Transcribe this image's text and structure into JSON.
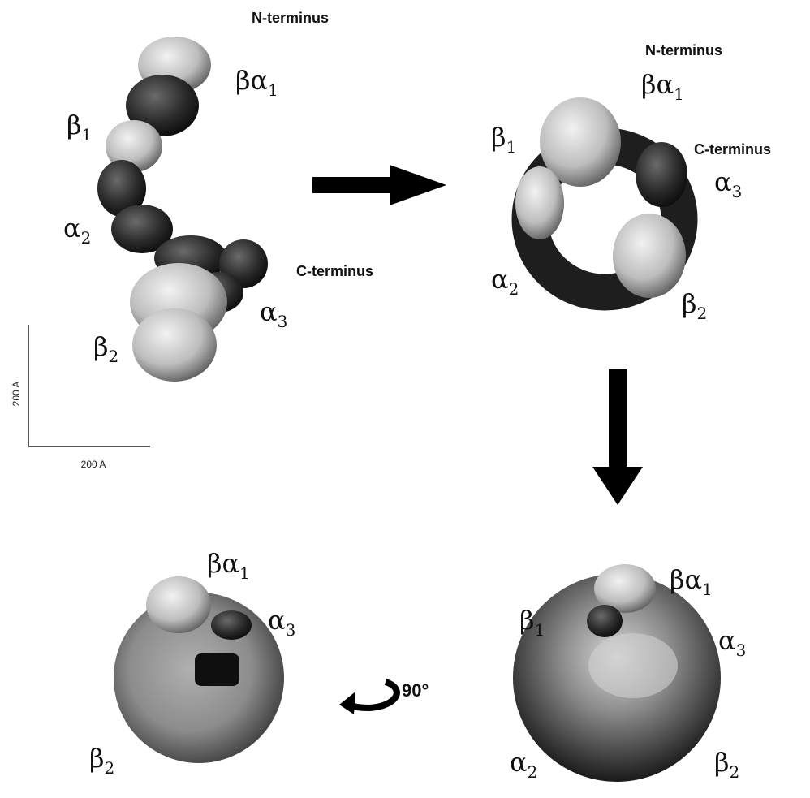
{
  "panels": [
    {
      "labels": [
        {
          "text": "N-terminus"
        },
        {
          "symbol": "βα",
          "subscript": "1"
        },
        {
          "symbol": "β",
          "subscript": "1"
        },
        {
          "symbol": "α",
          "subscript": "2"
        },
        {
          "text": "C-terminus"
        },
        {
          "symbol": "α",
          "subscript": "3"
        },
        {
          "symbol": "β",
          "subscript": "2"
        }
      ]
    },
    {
      "labels": [
        {
          "text": "N-terminus"
        },
        {
          "symbol": "βα",
          "subscript": "1"
        },
        {
          "symbol": "β",
          "subscript": "1"
        },
        {
          "text": "C-terminus"
        },
        {
          "symbol": "α",
          "subscript": "3"
        },
        {
          "symbol": "α",
          "subscript": "2"
        },
        {
          "symbol": "β",
          "subscript": "2"
        }
      ]
    },
    {
      "labels": [
        {
          "symbol": "βα",
          "subscript": "1"
        },
        {
          "symbol": "β",
          "subscript": "1"
        },
        {
          "symbol": "α",
          "subscript": "3"
        },
        {
          "symbol": "α",
          "subscript": "2"
        },
        {
          "symbol": "β",
          "subscript": "2"
        }
      ]
    },
    {
      "labels": [
        {
          "symbol": "βα",
          "subscript": "1"
        },
        {
          "symbol": "α",
          "subscript": "3"
        },
        {
          "symbol": "β",
          "subscript": "2"
        }
      ]
    }
  ],
  "scale_bar": {
    "vertical": "200 A",
    "horizontal": "200 A"
  },
  "rotation": "90°"
}
